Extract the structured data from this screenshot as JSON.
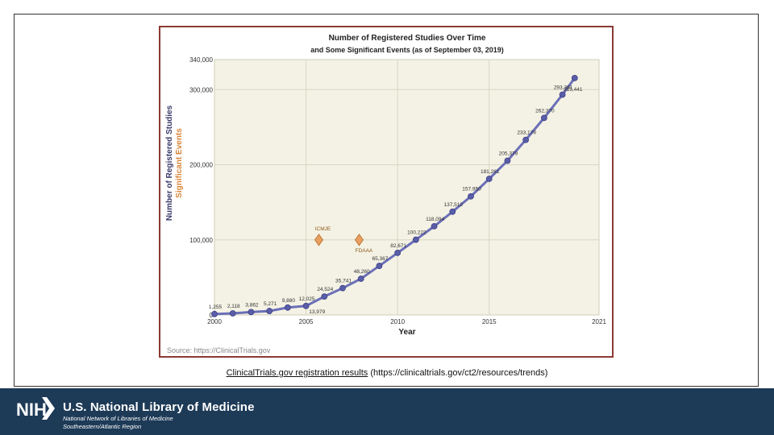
{
  "colors": {
    "plot_bg": "#f4f2e4",
    "line": "#6b6fb8",
    "marker": "#5a5ea8",
    "event_marker": "#e8a060",
    "frame": "#8b3a34",
    "footer_bg": "#1d3a57",
    "event_label": "#8b5a1a",
    "ylabel_secondary": "#d9853a"
  },
  "chart_data": {
    "type": "line",
    "title": "Number of Registered Studies Over Time",
    "subtitle": "and Some Significant Events (as of September 03, 2019)",
    "xlabel": "Year",
    "ylabel": "Number of Registered Studies",
    "ylabel2": "Significant Events",
    "xlim": [
      2000,
      2021
    ],
    "ylim": [
      0,
      340000
    ],
    "xticks": [
      "2000",
      "2005",
      "2010",
      "2015",
      "2021"
    ],
    "yticks": [
      "0",
      "100,000",
      "200,000",
      "300,000",
      "340,000"
    ],
    "grid": true,
    "source": "Source: https://ClinicalTrials.gov",
    "series": [
      {
        "x": [
          2000,
          2001,
          2002,
          2003,
          2004,
          2005,
          2006,
          2007,
          2008,
          2009,
          2010,
          2011,
          2012,
          2013,
          2014,
          2015,
          2016,
          2017,
          2018,
          2019
        ],
        "values": [
          1255,
          2118,
          3862,
          5271,
          9880,
          12025,
          24524,
          35741,
          48260,
          65367,
          82671,
          100222,
          118094,
          137512,
          157950,
          181261,
          205379,
          233179,
          262370,
          293351
        ],
        "labels": [
          "1,255",
          "2,118",
          "3,862",
          "5,271",
          "9,880",
          "12,025",
          "24,524",
          "35,741",
          "48,260",
          "65,367",
          "82,671",
          "100,222",
          "118,094",
          "137,512",
          "157,950",
          "181,261",
          "205,379",
          "233,179",
          "262,370",
          "293,351"
        ]
      }
    ],
    "last_point": {
      "x": 2019.67,
      "value": 315441,
      "label": "315,441"
    },
    "extra_label": {
      "x": 2005.6,
      "label": "13,979"
    },
    "events": [
      {
        "x": 2005.7,
        "value": 100000,
        "label": "ICMJE"
      },
      {
        "x": 2007.9,
        "value": 100000,
        "label": "FDAAA"
      }
    ]
  },
  "caption": {
    "link_text": "ClinicalTrials.gov registration results",
    "url_text": "(https://clinicaltrials.gov/ct2/resources/trends)"
  },
  "footer": {
    "logo_text": "NIH",
    "title": "U.S. National Library of Medicine",
    "subtitle_line1": "National Network of Libraries of Medicine",
    "subtitle_line2": "Southeastern/Atlantic Region"
  }
}
